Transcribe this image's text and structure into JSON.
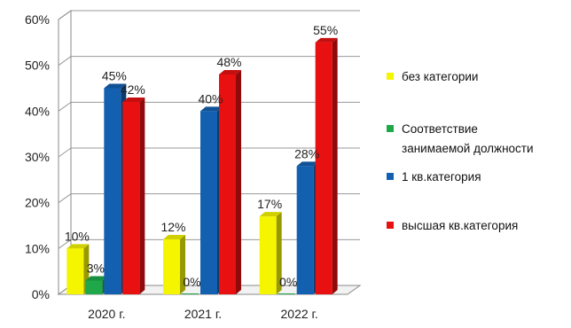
{
  "chart_data": {
    "type": "bar",
    "title": "",
    "xlabel": "",
    "ylabel": "",
    "categories": [
      "2020 г.",
      "2021 г.",
      "2022 г."
    ],
    "ylim": [
      0,
      60
    ],
    "yticks": [
      "0%",
      "10%",
      "20%",
      "30%",
      "40%",
      "50%",
      "60%"
    ],
    "grid": true,
    "legend_position": "right",
    "series": [
      {
        "name": "без категории",
        "values": [
          10,
          12,
          17
        ],
        "labels": [
          "10%",
          "12%",
          "17%"
        ],
        "color": "#f5f500"
      },
      {
        "name": "Соответствие занимаемой должности",
        "name_lines": [
          "Соответствие",
          "занимаемой должности"
        ],
        "values": [
          3,
          0,
          0
        ],
        "labels": [
          "3%",
          "0%",
          "0%"
        ],
        "color": "#1fa84a"
      },
      {
        "name": "1 кв.категория",
        "values": [
          45,
          40,
          28
        ],
        "labels": [
          "45%",
          "40%",
          "28%"
        ],
        "color": "#1460b0"
      },
      {
        "name": "высшая кв.категория",
        "values": [
          42,
          48,
          55
        ],
        "labels": [
          "42%",
          "48%",
          "55%"
        ],
        "color": "#e81010"
      }
    ]
  }
}
